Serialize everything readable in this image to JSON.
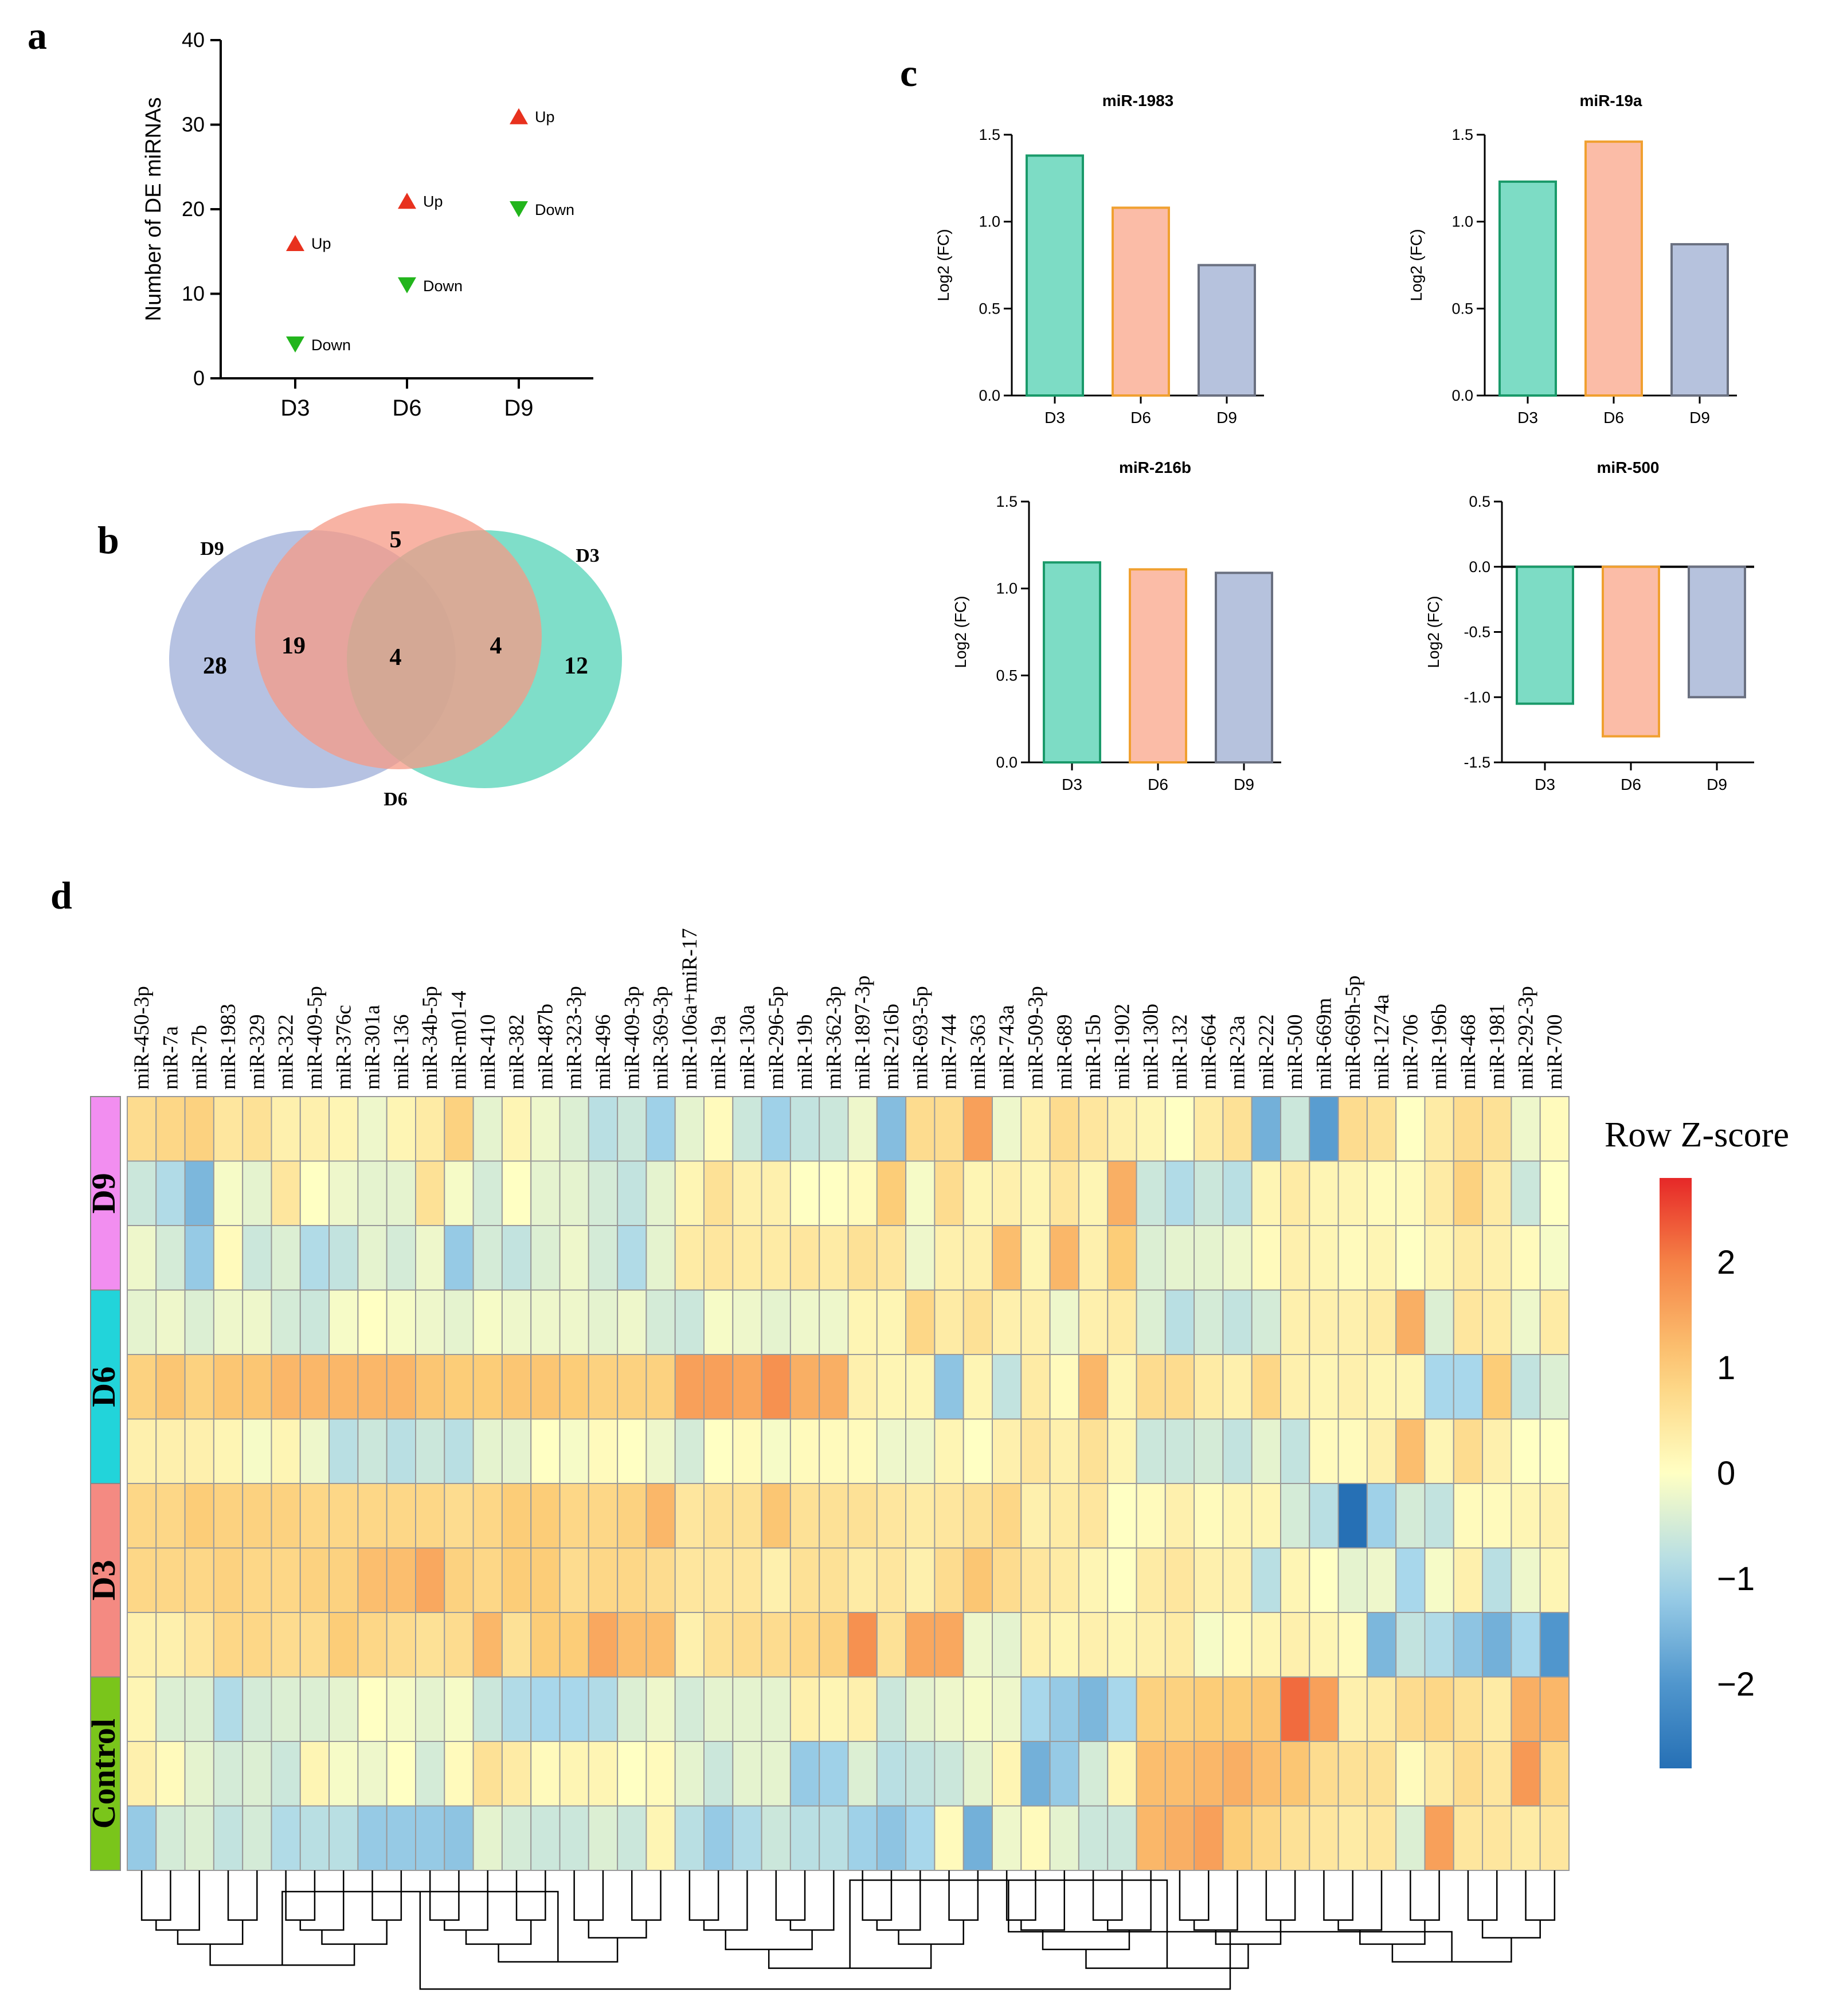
{
  "panel_labels": {
    "a": "a",
    "b": "b",
    "c": "c",
    "d": "d"
  },
  "colors": {
    "up": "#e8311e",
    "down": "#22b51c",
    "d3": "#7ddcc5",
    "d6": "#fbbca7",
    "d9": "#b6c2dd",
    "d3_stroke": "#1a9a6a",
    "d6_stroke": "#f0a030",
    "d9_stroke": "#6a7080",
    "venn_d9": "#a9b7dd",
    "venn_d6": "#f59a86",
    "venn_d3": "#5fd6bb",
    "group_d9": "#f28ef0",
    "group_d6": "#22d4da",
    "group_d3": "#f48a82",
    "group_control": "#7ac51b"
  },
  "chart_data": [
    {
      "id": "a",
      "type": "scatter",
      "title": "",
      "xlabel": "",
      "ylabel": "Number of  DE miRNAs",
      "categories": [
        "D3",
        "D6",
        "D9"
      ],
      "ylim": [
        0,
        40
      ],
      "yticks": [
        0,
        10,
        20,
        30,
        40
      ],
      "series": [
        {
          "name": "Up",
          "marker": "triangle-up",
          "values": [
            16,
            21,
            31
          ]
        },
        {
          "name": "Down",
          "marker": "triangle-down",
          "values": [
            4,
            11,
            20
          ]
        }
      ]
    },
    {
      "id": "b",
      "type": "venn",
      "sets": [
        "D9",
        "D6",
        "D3"
      ],
      "regions": {
        "D9_only": 28,
        "D6_only": 5,
        "D3_only": 12,
        "D9_D6": 19,
        "D6_D3": 4,
        "D9_D6_D3": 4
      }
    },
    {
      "id": "c1",
      "type": "bar",
      "title": "miR-1983",
      "ylabel": "Log2 (FC)",
      "categories": [
        "D3",
        "D6",
        "D9"
      ],
      "values": [
        1.38,
        1.08,
        0.75
      ],
      "ylim": [
        0,
        1.5
      ],
      "yticks": [
        0.0,
        0.5,
        1.0,
        1.5
      ]
    },
    {
      "id": "c2",
      "type": "bar",
      "title": "miR-19a",
      "ylabel": "Log2 (FC)",
      "categories": [
        "D3",
        "D6",
        "D9"
      ],
      "values": [
        1.23,
        1.46,
        0.87
      ],
      "ylim": [
        0,
        1.5
      ],
      "yticks": [
        0.0,
        0.5,
        1.0,
        1.5
      ]
    },
    {
      "id": "c3",
      "type": "bar",
      "title": "miR-216b",
      "ylabel": "Log2 (FC)",
      "categories": [
        "D3",
        "D6",
        "D9"
      ],
      "values": [
        1.15,
        1.11,
        1.09
      ],
      "ylim": [
        0,
        1.5
      ],
      "yticks": [
        0.0,
        0.5,
        1.0,
        1.5
      ]
    },
    {
      "id": "c4",
      "type": "bar",
      "title": "miR-500",
      "ylabel": "Log2 (FC)",
      "categories": [
        "D3",
        "D6",
        "D9"
      ],
      "values": [
        -1.05,
        -1.3,
        -1.0
      ],
      "ylim": [
        -1.5,
        0.5
      ],
      "yticks": [
        -1.5,
        -1.0,
        -0.5,
        0.0,
        0.5
      ]
    },
    {
      "id": "d",
      "type": "heatmap",
      "legend_title": "Row Z-score",
      "legend_ticks": [
        2,
        1,
        0,
        -1,
        -2
      ],
      "legend_tick_labels": [
        "2",
        "1",
        "0",
        "−1",
        "−2"
      ],
      "legend_range": [
        -2.8,
        2.8
      ],
      "columns": [
        "miR-450-3p",
        "miR-7a",
        "miR-7b",
        "miR-1983",
        "miR-329",
        "miR-322",
        "miR-409-5p",
        "miR-376c",
        "miR-301a",
        "miR-136",
        "miR-34b-5p",
        "miR-m01-4",
        "miR-410",
        "miR-382",
        "miR-487b",
        "miR-323-3p",
        "miR-496",
        "miR-409-3p",
        "miR-369-3p",
        "miR-106a+miR-17",
        "miR-19a",
        "miR-130a",
        "miR-296-5p",
        "miR-19b",
        "miR-362-3p",
        "miR-1897-3p",
        "miR-216b",
        "miR-693-5p",
        "miR-744",
        "miR-363",
        "miR-743a",
        "miR-509-3p",
        "miR-689",
        "miR-15b",
        "miR-1902",
        "miR-130b",
        "miR-132",
        "miR-664",
        "miR-23a",
        "miR-222",
        "miR-500",
        "miR-669m",
        "miR-669h-5p",
        "miR-1274a",
        "miR-706",
        "miR-196b",
        "miR-468",
        "miR-1981",
        "miR-292-3p",
        "miR-700"
      ],
      "groups": [
        {
          "label": "D9",
          "rows": 3
        },
        {
          "label": "D6",
          "rows": 3
        },
        {
          "label": "D3",
          "rows": 3
        },
        {
          "label": "Control",
          "rows": 3
        }
      ],
      "values": [
        [
          0.7,
          0.8,
          0.9,
          0.5,
          0.6,
          0.3,
          0.3,
          0.2,
          -0.2,
          0.2,
          0.4,
          0.9,
          -0.3,
          0.2,
          -0.2,
          -0.4,
          -0.8,
          -0.6,
          -1.1,
          -0.3,
          0.1,
          -0.6,
          -1.1,
          -0.7,
          -0.6,
          -0.2,
          -1.4,
          0.7,
          0.7,
          1.6,
          -0.2,
          0.3,
          0.7,
          0.5,
          0.3,
          0.2,
          0.0,
          0.4,
          0.6,
          -1.6,
          -0.6,
          -1.9,
          0.7,
          0.6,
          0.0,
          0.4,
          0.7,
          0.6,
          -0.2,
          0.1
        ],
        [
          -0.6,
          -0.9,
          -1.5,
          -0.1,
          -0.3,
          0.5,
          0.0,
          -0.2,
          -0.3,
          -0.3,
          0.6,
          -0.1,
          -0.5,
          0.0,
          -0.3,
          -0.3,
          -0.5,
          -0.7,
          -0.3,
          0.2,
          0.6,
          0.3,
          0.3,
          0.0,
          0.0,
          0.1,
          1.0,
          -0.1,
          0.7,
          0.2,
          0.3,
          0.2,
          0.5,
          0.2,
          1.4,
          -0.6,
          -0.9,
          -0.6,
          -0.8,
          0.2,
          0.4,
          0.2,
          0.2,
          0.1,
          0.1,
          0.4,
          0.9,
          0.4,
          -0.6,
          0.0
        ],
        [
          -0.2,
          -0.5,
          -1.2,
          0.1,
          -0.6,
          -0.4,
          -0.9,
          -0.7,
          -0.3,
          -0.5,
          -0.2,
          -1.2,
          -0.5,
          -0.7,
          -0.4,
          -0.2,
          -0.5,
          -0.9,
          -0.3,
          0.4,
          0.5,
          0.4,
          0.4,
          0.5,
          0.4,
          0.6,
          0.5,
          -0.2,
          0.3,
          0.3,
          1.2,
          0.2,
          1.3,
          0.3,
          1.0,
          -0.4,
          -0.3,
          -0.3,
          -0.2,
          0.1,
          0.3,
          0.2,
          0.1,
          0.2,
          0.0,
          0.2,
          0.4,
          0.3,
          0.1,
          -0.1
        ],
        [
          -0.3,
          -0.2,
          -0.4,
          -0.2,
          -0.2,
          -0.5,
          -0.6,
          -0.1,
          0.0,
          -0.1,
          -0.2,
          -0.3,
          -0.1,
          -0.2,
          -0.2,
          -0.2,
          -0.3,
          -0.2,
          -0.5,
          -0.6,
          -0.1,
          -0.2,
          -0.3,
          -0.2,
          -0.2,
          0.2,
          0.2,
          0.8,
          0.4,
          0.6,
          0.3,
          0.3,
          -0.2,
          0.3,
          0.4,
          -0.4,
          -0.8,
          -0.5,
          -0.7,
          -0.5,
          0.3,
          0.3,
          0.3,
          0.4,
          1.4,
          -0.4,
          0.5,
          0.4,
          -0.2,
          0.4
        ],
        [
          0.9,
          1.1,
          0.9,
          1.1,
          1.1,
          1.3,
          1.3,
          1.3,
          1.3,
          1.3,
          1.1,
          1.0,
          1.0,
          1.1,
          1.1,
          1.0,
          0.9,
          0.9,
          0.9,
          1.6,
          1.6,
          1.5,
          1.8,
          1.4,
          1.4,
          0.3,
          0.2,
          0.2,
          -1.3,
          0.2,
          -0.7,
          0.4,
          0.1,
          1.3,
          0.2,
          0.7,
          0.7,
          0.4,
          0.3,
          0.8,
          0.3,
          0.2,
          0.3,
          0.2,
          0.2,
          -1.0,
          -1.0,
          1.0,
          -0.7,
          -0.4
        ],
        [
          0.3,
          0.3,
          0.3,
          0.2,
          -0.1,
          0.2,
          -0.2,
          -0.8,
          -0.6,
          -0.8,
          -0.6,
          -0.8,
          -0.3,
          -0.3,
          0.0,
          -0.1,
          0.1,
          0.0,
          -0.2,
          -0.5,
          0.0,
          0.1,
          -0.1,
          0.1,
          0.1,
          0.1,
          -0.2,
          -0.2,
          0.2,
          0.0,
          0.3,
          0.5,
          0.3,
          0.6,
          0.2,
          -0.6,
          -0.6,
          -0.5,
          -0.7,
          -0.3,
          -0.7,
          0.1,
          0.1,
          0.3,
          1.2,
          0.2,
          0.7,
          0.3,
          0.0,
          0.0
        ],
        [
          0.8,
          0.8,
          1.0,
          0.9,
          0.9,
          0.9,
          0.8,
          0.8,
          0.8,
          0.8,
          0.8,
          0.7,
          0.8,
          1.0,
          1.0,
          0.8,
          0.8,
          0.9,
          1.3,
          0.5,
          0.6,
          0.6,
          1.1,
          0.6,
          0.6,
          0.6,
          0.5,
          0.4,
          0.5,
          0.6,
          0.8,
          0.3,
          0.4,
          0.5,
          0.0,
          0.1,
          0.3,
          0.1,
          0.2,
          0.2,
          -0.5,
          -0.8,
          -2.8,
          -1.1,
          -0.5,
          -0.7,
          0.1,
          0.1,
          0.2,
          0.3
        ],
        [
          0.8,
          0.8,
          0.8,
          0.9,
          0.8,
          0.8,
          0.9,
          0.9,
          1.2,
          1.2,
          1.5,
          0.9,
          0.8,
          1.0,
          1.0,
          0.7,
          0.8,
          0.8,
          0.7,
          0.5,
          0.5,
          0.5,
          0.3,
          0.6,
          0.6,
          0.4,
          0.5,
          0.3,
          0.7,
          1.1,
          0.7,
          0.5,
          0.4,
          0.2,
          0.0,
          0.4,
          0.5,
          0.3,
          0.3,
          -0.8,
          0.2,
          0.0,
          -0.3,
          -0.2,
          -1.0,
          -0.1,
          0.3,
          -0.8,
          -0.2,
          0.2
        ],
        [
          0.3,
          0.3,
          0.5,
          0.8,
          0.8,
          0.7,
          0.7,
          1.0,
          0.8,
          0.7,
          0.6,
          0.7,
          1.3,
          0.6,
          1.0,
          1.0,
          1.5,
          1.2,
          1.2,
          0.3,
          0.6,
          0.7,
          0.7,
          0.8,
          0.9,
          1.8,
          0.6,
          1.5,
          1.5,
          -0.2,
          -0.3,
          0.3,
          0.2,
          0.3,
          0.2,
          0.3,
          0.4,
          -0.1,
          0.1,
          0.2,
          0.3,
          0.2,
          0.1,
          -1.5,
          -0.7,
          -0.9,
          -1.3,
          -1.6,
          -1.0,
          -2.0
        ],
        [
          0.2,
          -0.4,
          -0.4,
          -0.9,
          -0.5,
          -0.4,
          -0.4,
          -0.3,
          0.0,
          -0.1,
          -0.3,
          -0.1,
          -0.6,
          -0.9,
          -1.0,
          -1.0,
          -0.9,
          -0.4,
          -0.2,
          -0.5,
          -0.3,
          -0.3,
          -0.3,
          0.3,
          0.2,
          0.3,
          -0.6,
          -0.3,
          -0.2,
          -0.1,
          -0.2,
          -1.0,
          -1.2,
          -1.5,
          -1.0,
          0.9,
          0.9,
          1.0,
          1.0,
          1.1,
          2.2,
          1.6,
          0.3,
          0.4,
          0.7,
          0.8,
          0.6,
          0.4,
          1.4,
          1.3
        ],
        [
          0.3,
          0.1,
          -0.3,
          -0.5,
          -0.4,
          -0.6,
          0.2,
          -0.1,
          -0.2,
          0.0,
          -0.5,
          0.1,
          0.6,
          0.4,
          0.1,
          0.2,
          0.2,
          0.0,
          0.1,
          -0.3,
          -0.6,
          -0.3,
          -0.3,
          -1.2,
          -1.1,
          -0.4,
          -0.8,
          -0.7,
          -0.6,
          -0.3,
          0.2,
          -1.6,
          -1.2,
          -0.5,
          0.2,
          1.2,
          1.2,
          1.3,
          1.4,
          1.2,
          1.1,
          0.7,
          0.6,
          0.6,
          0.1,
          0.4,
          0.7,
          0.5,
          1.7,
          0.8
        ],
        [
          -1.2,
          -0.5,
          -0.4,
          -0.7,
          -0.5,
          -0.9,
          -0.8,
          -0.8,
          -1.2,
          -1.2,
          -1.2,
          -1.3,
          -0.3,
          -0.5,
          -0.6,
          -0.6,
          -0.4,
          -0.6,
          0.2,
          -0.8,
          -1.2,
          -0.9,
          -0.6,
          -0.8,
          -0.8,
          -1.1,
          -1.3,
          -1.0,
          0.1,
          -1.6,
          -0.2,
          0.1,
          -0.3,
          -0.6,
          -0.6,
          1.3,
          1.4,
          1.6,
          1.0,
          0.8,
          0.6,
          0.5,
          0.4,
          0.5,
          -0.4,
          1.6,
          0.5,
          0.5,
          0.4,
          0.5
        ]
      ]
    }
  ]
}
